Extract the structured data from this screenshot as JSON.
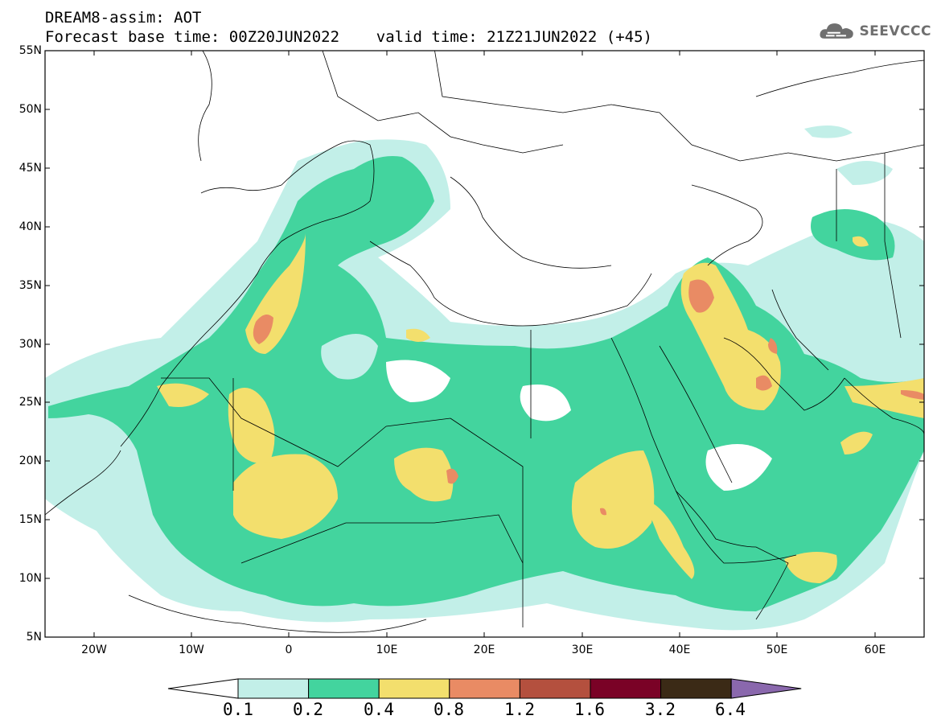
{
  "title_line1": "DREAM8-assim: AOT",
  "title_line2": "Forecast base time: 00Z20JUN2022    valid time: 21Z21JUN2022 (+45)",
  "logo": {
    "text": "SEEVCCC",
    "icon": "cloud-logo-icon"
  },
  "lat_labels": [
    "55N",
    "50N",
    "45N",
    "40N",
    "35N",
    "30N",
    "25N",
    "20N",
    "15N",
    "10N",
    "5N"
  ],
  "lon_labels": [
    "20W",
    "10W",
    "0",
    "10E",
    "20E",
    "30E",
    "40E",
    "50E",
    "60E"
  ],
  "colorbar": {
    "labels": [
      "0.1",
      "0.2",
      "0.4",
      "0.8",
      "1.2",
      "1.6",
      "3.2",
      "6.4"
    ],
    "colors": [
      "#c2efe8",
      "#43d49e",
      "#f3df6d",
      "#e98b64",
      "#b4503e",
      "#7a0226",
      "#3b2a16",
      "#8a68ad"
    ],
    "levels": [
      0.1,
      0.2,
      0.4,
      0.8,
      1.2,
      1.6,
      3.2,
      6.4
    ]
  }
}
